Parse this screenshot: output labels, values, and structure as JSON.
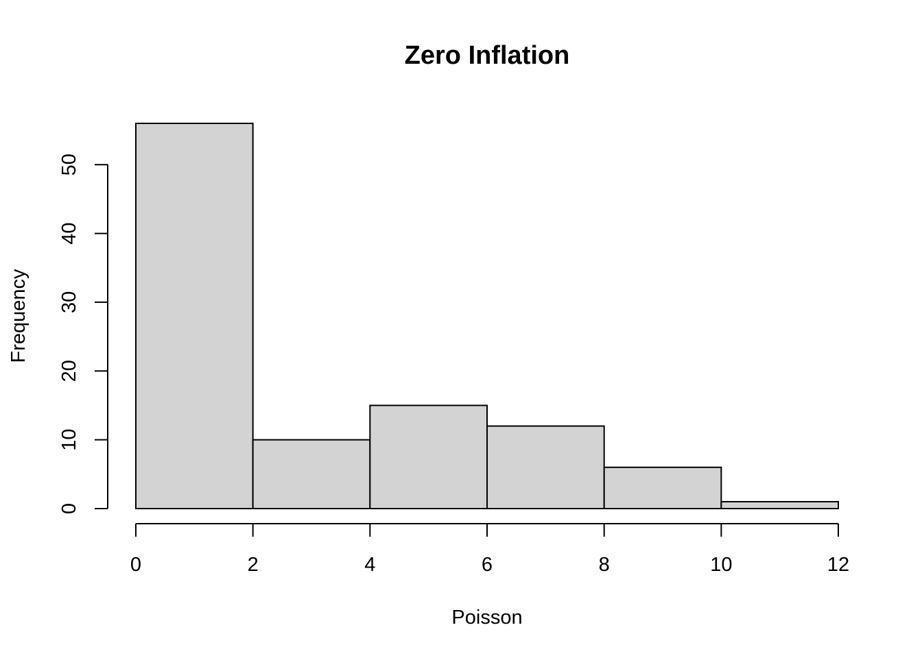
{
  "chart_data": {
    "type": "bar",
    "title": "Zero Inflation",
    "xlabel": "Poisson",
    "ylabel": "Frequency",
    "bins": [
      {
        "x0": 0,
        "x1": 2,
        "count": 56
      },
      {
        "x0": 2,
        "x1": 4,
        "count": 10
      },
      {
        "x0": 4,
        "x1": 6,
        "count": 15
      },
      {
        "x0": 6,
        "x1": 8,
        "count": 12
      },
      {
        "x0": 8,
        "x1": 10,
        "count": 6
      },
      {
        "x0": 10,
        "x1": 12,
        "count": 1
      }
    ],
    "xticks": [
      0,
      2,
      4,
      6,
      8,
      10,
      12
    ],
    "xtick_labels": [
      "0",
      "2",
      "4",
      "6",
      "8",
      "10",
      "12"
    ],
    "yticks": [
      0,
      10,
      20,
      30,
      40,
      50
    ],
    "ytick_labels": [
      "0",
      "10",
      "20",
      "30",
      "40",
      "50"
    ],
    "xlim": [
      0,
      12
    ],
    "ylim": [
      0,
      56
    ],
    "grid": false,
    "legend": "none",
    "colors": {
      "bar_fill": "#d3d3d3",
      "bar_stroke": "#000000",
      "axis": "#000000",
      "background": "#ffffff"
    }
  }
}
